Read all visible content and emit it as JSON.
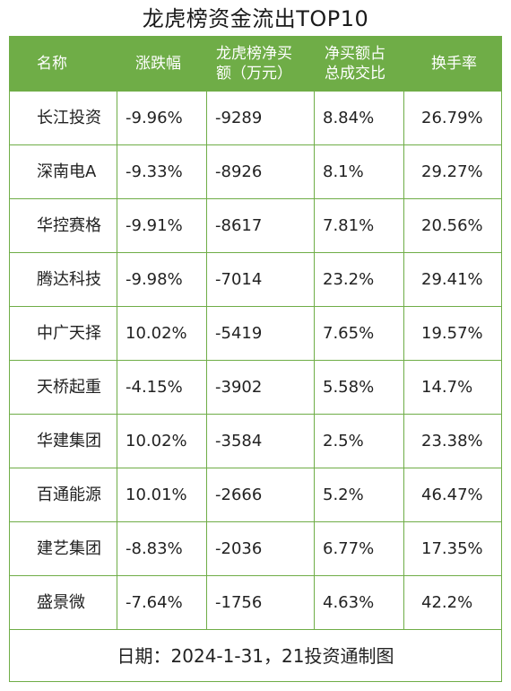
{
  "title": "龙虎榜资金流出TOP10",
  "headers": {
    "name": "名称",
    "change": "涨跌幅",
    "net_buy_line1": "龙虎榜净买",
    "net_buy_line2": "额（万元）",
    "ratio_line1": "净买额占",
    "ratio_line2": "总成交比",
    "turnover": "换手率"
  },
  "rows": [
    {
      "name": "长江投资",
      "change": "-9.96%",
      "net_buy": "-9289",
      "ratio": "8.84%",
      "turnover": "26.79%"
    },
    {
      "name": "深南电A",
      "change": "-9.33%",
      "net_buy": "-8926",
      "ratio": "8.1%",
      "turnover": "29.27%"
    },
    {
      "name": "华控赛格",
      "change": "-9.91%",
      "net_buy": "-8617",
      "ratio": "7.81%",
      "turnover": "20.56%"
    },
    {
      "name": "腾达科技",
      "change": "-9.98%",
      "net_buy": "-7014",
      "ratio": "23.2%",
      "turnover": "29.41%"
    },
    {
      "name": "中广天择",
      "change": "10.02%",
      "net_buy": "-5419",
      "ratio": "7.65%",
      "turnover": "19.57%"
    },
    {
      "name": "天桥起重",
      "change": "-4.15%",
      "net_buy": "-3902",
      "ratio": "5.58%",
      "turnover": "14.7%"
    },
    {
      "name": "华建集团",
      "change": "10.02%",
      "net_buy": "-3584",
      "ratio": "2.5%",
      "turnover": "23.38%"
    },
    {
      "name": "百通能源",
      "change": "10.01%",
      "net_buy": "-2666",
      "ratio": "5.2%",
      "turnover": "46.47%"
    },
    {
      "name": "建艺集团",
      "change": "-8.83%",
      "net_buy": "-2036",
      "ratio": "6.77%",
      "turnover": "17.35%"
    },
    {
      "name": "盛景微",
      "change": "-7.64%",
      "net_buy": "-1756",
      "ratio": "4.63%",
      "turnover": "42.2%"
    }
  ],
  "footer": "日期：2024-1-31，21投资通制图",
  "colors": {
    "header_bg": "#6fad47",
    "header_text": "#ffffff",
    "border": "#6fad47"
  }
}
